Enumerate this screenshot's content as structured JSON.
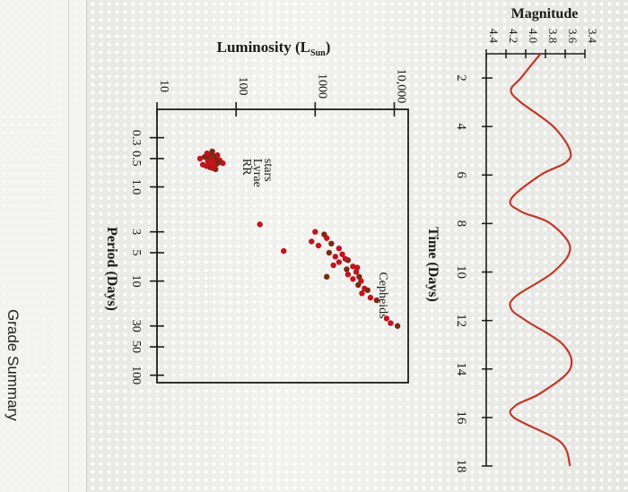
{
  "page": {
    "grade_summary_label": "Grade Summary"
  },
  "colors": {
    "background": "#ecedea",
    "axis": "#1a1a1a",
    "curve": "#c0392b",
    "point_red": "#c0141e",
    "point_brown": "#7a2a12"
  },
  "chart_data": [
    {
      "type": "line",
      "ylabel": "Magnitude",
      "xlabel": "Time (Days)",
      "ylim": [
        4.4,
        3.4
      ],
      "xlim": [
        1,
        18
      ],
      "yticks": [
        "3.4",
        "3.6",
        "3.8",
        "4.0",
        "4.2",
        "4.4"
      ],
      "xticks": [
        "2",
        "4",
        "6",
        "8",
        "10",
        "12",
        "14",
        "16",
        "18"
      ],
      "x": [
        1.0,
        2.0,
        2.5,
        3.0,
        4.0,
        5.0,
        5.5,
        6.0,
        7.0,
        7.5,
        8.0,
        9.0,
        10.0,
        11.0,
        11.5,
        12.0,
        13.0,
        14.0,
        15.0,
        15.5,
        16.0,
        17.0,
        18.0
      ],
      "series": [
        {
          "values": [
            3.85,
            4.05,
            4.15,
            4.05,
            3.72,
            3.55,
            3.6,
            3.85,
            4.15,
            4.05,
            3.75,
            3.55,
            3.72,
            4.1,
            4.15,
            4.0,
            3.62,
            3.55,
            3.85,
            4.1,
            4.12,
            3.65,
            3.55
          ]
        }
      ]
    },
    {
      "type": "scatter",
      "ylabel": "Luminosity (L",
      "ylabel_subscript": "Sun",
      "ylabel_close": ")",
      "xlabel": "Period (Days)",
      "yscale": "log",
      "xscale": "log",
      "ylim": [
        10,
        15000
      ],
      "xlim": [
        0.15,
        120
      ],
      "yticks": [
        {
          "value": 10,
          "label": "10"
        },
        {
          "value": 100,
          "label": "100"
        },
        {
          "value": 1000,
          "label": "1000"
        },
        {
          "value": 10000,
          "label": "10,000"
        }
      ],
      "xticks": [
        {
          "value": 0.3,
          "label": "0.3"
        },
        {
          "value": 0.5,
          "label": "0.5"
        },
        {
          "value": 1,
          "label": "1.0"
        },
        {
          "value": 3,
          "label": "3"
        },
        {
          "value": 5,
          "label": "5"
        },
        {
          "value": 10,
          "label": "10"
        },
        {
          "value": 30,
          "label": "30"
        },
        {
          "value": 50,
          "label": "50"
        },
        {
          "value": 100,
          "label": "100"
        }
      ],
      "annotations": [
        {
          "lines": [
            "RR",
            "Lyrae",
            "stars"
          ],
          "x": 0.5,
          "y": 100
        },
        {
          "lines": [
            "Cepheids"
          ],
          "x": 8,
          "y": 5000
        }
      ],
      "series": [
        {
          "name": "RR Lyrae stars",
          "points": [
            [
              0.45,
              48
            ],
            [
              0.5,
              55
            ],
            [
              0.55,
              45
            ],
            [
              0.6,
              52
            ],
            [
              0.48,
              40
            ],
            [
              0.52,
              62
            ],
            [
              0.58,
              38
            ],
            [
              0.62,
              47
            ],
            [
              0.46,
              58
            ],
            [
              0.54,
              50
            ],
            [
              0.65,
              55
            ],
            [
              0.5,
              35
            ],
            [
              0.56,
              68
            ],
            [
              0.42,
              50
            ],
            [
              0.6,
              42
            ],
            [
              0.53,
              44
            ],
            [
              0.47,
              52
            ],
            [
              0.57,
              57
            ],
            [
              0.63,
              50
            ],
            [
              0.49,
              46
            ],
            [
              0.51,
              49
            ],
            [
              0.59,
              53
            ],
            [
              0.55,
              60
            ],
            [
              0.44,
              43
            ]
          ]
        },
        {
          "name": "Cepheids",
          "points": [
            [
              3,
              1000
            ],
            [
              3.2,
              1300
            ],
            [
              3.5,
              1400
            ],
            [
              3.8,
              900
            ],
            [
              4,
              1600
            ],
            [
              4.2,
              1100
            ],
            [
              4.5,
              2000
            ],
            [
              5,
              1500
            ],
            [
              5.2,
              2200
            ],
            [
              5.5,
              1800
            ],
            [
              6,
              2600
            ],
            [
              6.3,
              2000
            ],
            [
              7,
              3000
            ],
            [
              7.5,
              2500
            ],
            [
              8,
              3300
            ],
            [
              8.5,
              2600
            ],
            [
              9,
              3600
            ],
            [
              9.5,
              3000
            ],
            [
              10,
              3800
            ],
            [
              11,
              3500
            ],
            [
              12,
              4200
            ],
            [
              15,
              5000
            ],
            [
              16,
              6000
            ],
            [
              25,
              8000
            ],
            [
              28,
              9000
            ],
            [
              30,
              11000
            ],
            [
              4.8,
              400
            ],
            [
              2.5,
              200
            ],
            [
              9,
              1400
            ],
            [
              5.8,
              2400
            ],
            [
              6.8,
              1700
            ],
            [
              12.5,
              4600
            ],
            [
              7.2,
              3400
            ],
            [
              13.5,
              3900
            ]
          ]
        }
      ]
    }
  ]
}
